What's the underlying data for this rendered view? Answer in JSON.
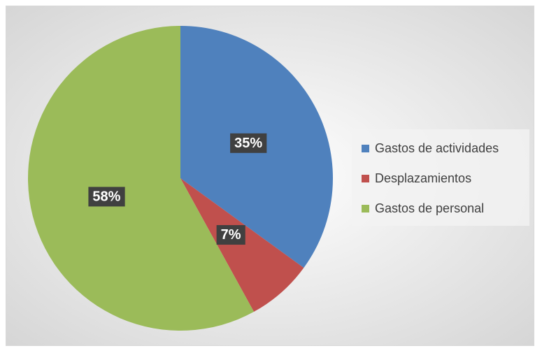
{
  "chart_data": {
    "type": "pie",
    "categories": [
      "Gastos de actividades",
      "Desplazamientos",
      "Gastos de personal"
    ],
    "values": [
      35,
      7,
      58
    ],
    "value_labels": [
      "35%",
      "7%",
      "58%"
    ],
    "colors": [
      "#4f81bd",
      "#c0504d",
      "#9bbb59"
    ],
    "legend": "right"
  }
}
